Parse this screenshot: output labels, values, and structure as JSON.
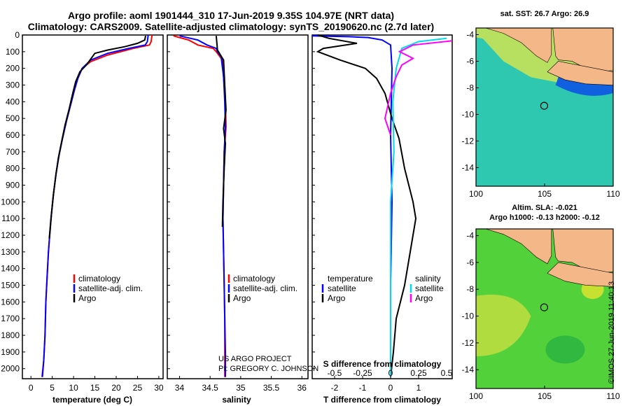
{
  "header": {
    "title_line1": "Argo profile: aoml 1901444_310 17-Jun-2019 9.35S 104.97E (NRT data)",
    "title_line2": "Climatology: CARS2009. Satellite-adjusted climatology: synTS_20190620.nc (2.7d later)"
  },
  "colors": {
    "climatology": "#ff0000",
    "satellite": "#0000ff",
    "argo": "#000000",
    "satellite_salinity": "#00d8f0",
    "argo_salinity": "#ff00ff",
    "land": "#f4b888",
    "sea_warm": "#52d13a",
    "sea_cool": "#2ec8b0"
  },
  "pressure_ticks": [
    "0",
    "100",
    "200",
    "300",
    "400",
    "500",
    "600",
    "700",
    "800",
    "900",
    "1000",
    "1100",
    "1200",
    "1300",
    "1400",
    "1500",
    "1600",
    "1700",
    "1800",
    "1900",
    "2000"
  ],
  "chart_data": [
    {
      "type": "line",
      "xlabel": "temperature (deg C)",
      "xticks": [
        "0",
        "5",
        "10",
        "15",
        "20",
        "25",
        "30"
      ],
      "xlim": [
        -2,
        31
      ],
      "ylim": [
        2060,
        0
      ],
      "legend": [
        "climatology",
        "satellite-adj. clim.",
        "Argo"
      ],
      "series": [
        {
          "name": "climatology",
          "points": [
            [
              28.4,
              0
            ],
            [
              28.2,
              40
            ],
            [
              27.8,
              60
            ],
            [
              24,
              80
            ],
            [
              18,
              120
            ],
            [
              14,
              160
            ],
            [
              12,
              200
            ],
            [
              11,
              260
            ],
            [
              10.2,
              330
            ],
            [
              9.3,
              420
            ],
            [
              8.3,
              520
            ],
            [
              7.4,
              620
            ],
            [
              6.6,
              720
            ],
            [
              5.9,
              830
            ],
            [
              5.3,
              950
            ],
            [
              4.8,
              1080
            ],
            [
              4.4,
              1200
            ],
            [
              4.1,
              1300
            ],
            [
              3.8,
              1450
            ],
            [
              3.5,
              1600
            ],
            [
              3.3,
              1800
            ],
            [
              3.0,
              1950
            ],
            [
              2.6,
              2050
            ]
          ]
        },
        {
          "name": "satellite-adj. clim.",
          "points": [
            [
              27.5,
              0
            ],
            [
              27.3,
              40
            ],
            [
              26.8,
              60
            ],
            [
              23,
              80
            ],
            [
              18,
              110
            ],
            [
              14,
              150
            ],
            [
              12,
              200
            ],
            [
              11,
              260
            ],
            [
              10.2,
              330
            ],
            [
              9.3,
              420
            ],
            [
              8.3,
              520
            ],
            [
              7.4,
              620
            ],
            [
              6.6,
              720
            ],
            [
              5.9,
              830
            ],
            [
              5.3,
              950
            ],
            [
              4.8,
              1080
            ],
            [
              4.4,
              1200
            ],
            [
              4.1,
              1300
            ],
            [
              3.8,
              1450
            ],
            [
              3.5,
              1600
            ],
            [
              3.3,
              1800
            ],
            [
              3.0,
              1950
            ],
            [
              2.7,
              2050
            ]
          ]
        },
        {
          "name": "Argo",
          "points": [
            [
              26.9,
              5
            ],
            [
              26.7,
              30
            ],
            [
              25,
              50
            ],
            [
              22,
              70
            ],
            [
              18,
              90
            ],
            [
              15,
              110
            ],
            [
              13,
              180
            ],
            [
              11.5,
              220
            ],
            [
              10.5,
              280
            ],
            [
              9.8,
              350
            ],
            [
              9.0,
              440
            ],
            [
              8.0,
              540
            ],
            [
              7.2,
              640
            ],
            [
              6.4,
              740
            ],
            [
              5.8,
              850
            ],
            [
              5.2,
              970
            ],
            [
              4.7,
              1100
            ],
            [
              4.3,
              1220
            ]
          ]
        }
      ]
    },
    {
      "type": "line",
      "xlabel": "salinity",
      "xticks": [
        "34",
        "34.5",
        "35",
        "35.5",
        "36"
      ],
      "xlim": [
        33.8,
        36.1
      ],
      "ylim": [
        2060,
        0
      ],
      "legend": [
        "climatology",
        "satellite-adj. clim.",
        "Argo"
      ],
      "annotations": [
        "US ARGO PROJECT",
        "PI: GREGORY C. JOHNSON"
      ],
      "series": [
        {
          "name": "climatology",
          "points": [
            [
              33.9,
              5
            ],
            [
              34.15,
              30
            ],
            [
              34.3,
              60
            ],
            [
              34.55,
              80
            ],
            [
              34.6,
              100
            ],
            [
              34.7,
              150
            ],
            [
              34.72,
              250
            ],
            [
              34.75,
              400
            ],
            [
              34.76,
              550
            ],
            [
              34.73,
              700
            ],
            [
              34.72,
              900
            ],
            [
              34.71,
              1100
            ],
            [
              34.72,
              1300
            ],
            [
              34.73,
              1500
            ],
            [
              34.74,
              1700
            ],
            [
              34.74,
              1900
            ],
            [
              34.74,
              2050
            ]
          ]
        },
        {
          "name": "satellite-adj. clim.",
          "points": [
            [
              34.0,
              5
            ],
            [
              34.3,
              30
            ],
            [
              34.45,
              60
            ],
            [
              34.6,
              80
            ],
            [
              34.62,
              100
            ],
            [
              34.68,
              130
            ],
            [
              34.72,
              250
            ],
            [
              34.74,
              400
            ],
            [
              34.75,
              550
            ],
            [
              34.73,
              700
            ],
            [
              34.72,
              900
            ],
            [
              34.71,
              1100
            ],
            [
              34.72,
              1300
            ],
            [
              34.73,
              1500
            ],
            [
              34.74,
              1700
            ],
            [
              34.75,
              1900
            ],
            [
              34.75,
              2050
            ]
          ]
        },
        {
          "name": "Argo",
          "points": [
            [
              34.6,
              5
            ],
            [
              34.62,
              90
            ],
            [
              34.72,
              150
            ],
            [
              34.74,
              300
            ],
            [
              34.76,
              450
            ],
            [
              34.72,
              560
            ],
            [
              34.75,
              650
            ],
            [
              34.73,
              800
            ],
            [
              34.71,
              1000
            ],
            [
              34.7,
              1150
            ]
          ]
        }
      ]
    },
    {
      "type": "line",
      "xlabel": "T difference from climatology",
      "xticks": [
        "-2",
        "-1",
        "0",
        "1"
      ],
      "xlim": [
        -2.8,
        2.2
      ],
      "top_label": "S difference from climatology",
      "top_ticks": [
        "-0.5",
        "-0.25",
        "0",
        "0.25",
        "0.5"
      ],
      "top_xlim": [
        -0.7,
        0.55
      ],
      "ylim": [
        2060,
        0
      ],
      "legend_left_title": "temperature",
      "legend_right_title": "salinity",
      "legend_left": [
        "satellite",
        "Argo"
      ],
      "legend_right": [
        "satellite",
        "Argo"
      ],
      "series": [
        {
          "name": "T satellite",
          "axis": "T",
          "points": [
            [
              -2.8,
              5
            ],
            [
              -1.5,
              10
            ],
            [
              -0.8,
              15
            ],
            [
              -0.3,
              30
            ],
            [
              0,
              60
            ],
            [
              0.05,
              200
            ],
            [
              0.0,
              600
            ],
            [
              0.05,
              1000
            ],
            [
              0.0,
              1500
            ],
            [
              0.0,
              2050
            ]
          ]
        },
        {
          "name": "T Argo",
          "axis": "T",
          "points": [
            [
              -2.6,
              0
            ],
            [
              -2.2,
              20
            ],
            [
              -1.2,
              50
            ],
            [
              -2.4,
              80
            ],
            [
              -2.6,
              100
            ],
            [
              -1.8,
              150
            ],
            [
              -0.9,
              200
            ],
            [
              -0.5,
              260
            ],
            [
              -0.2,
              350
            ],
            [
              0.05,
              500
            ],
            [
              0.3,
              620
            ],
            [
              0.5,
              800
            ],
            [
              0.8,
              1000
            ],
            [
              0.9,
              1100
            ],
            [
              0.7,
              1300
            ],
            [
              0.5,
              1500
            ],
            [
              0.2,
              1700
            ],
            [
              0.1,
              1900
            ],
            [
              0.0,
              2050
            ]
          ]
        },
        {
          "name": "S satellite",
          "axis": "S",
          "points": [
            [
              0.5,
              20
            ],
            [
              0.25,
              40
            ],
            [
              0.1,
              80
            ],
            [
              0.05,
              200
            ],
            [
              0.02,
              400
            ],
            [
              0.03,
              700
            ],
            [
              0.0,
              1000
            ],
            [
              0.0,
              1500
            ],
            [
              0.0,
              2050
            ]
          ]
        },
        {
          "name": "S Argo",
          "axis": "S",
          "points": [
            [
              0.55,
              35
            ],
            [
              0.2,
              60
            ],
            [
              0.08,
              100
            ],
            [
              0.2,
              140
            ],
            [
              0.1,
              180
            ],
            [
              0.05,
              250
            ],
            [
              0.0,
              350
            ],
            [
              -0.05,
              500
            ],
            [
              0.0,
              600
            ]
          ]
        }
      ]
    },
    {
      "type": "heatmap",
      "title": "sat. SST: 26.7 Argo: 26.9",
      "xticks": [
        "100",
        "105",
        "110"
      ],
      "yticks": [
        "-4",
        "-6",
        "-8",
        "-10",
        "-12",
        "-14"
      ],
      "xlim": [
        100,
        110
      ],
      "ylim": [
        -15.4,
        -3.5
      ],
      "float_position": [
        104.97,
        -9.35
      ]
    },
    {
      "type": "heatmap",
      "title": "Altim. SLA: -0.021",
      "subtitle": "Argo h1000: -0.13 h2000: -0.12",
      "xticks": [
        "100",
        "105",
        "110"
      ],
      "yticks": [
        "-4",
        "-6",
        "-8",
        "-10",
        "-12",
        "-14"
      ],
      "xlim": [
        100,
        110
      ],
      "ylim": [
        -15.4,
        -3.5
      ],
      "float_position": [
        104.97,
        -9.35
      ]
    }
  ],
  "timestamp": "©IMOS 27-Jun-2019 11:40:13"
}
